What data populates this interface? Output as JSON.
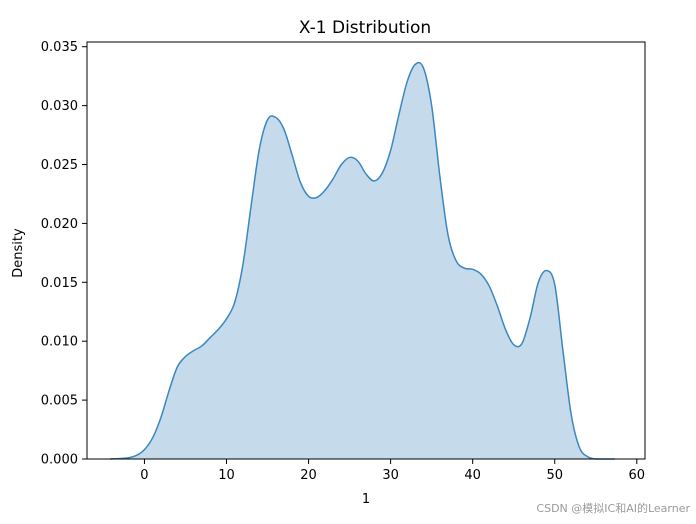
{
  "chart_data": {
    "type": "area",
    "title": "X-1 Distribution",
    "xlabel": "1",
    "ylabel": "Density",
    "xlim": [
      -7,
      61
    ],
    "ylim": [
      0,
      0.0354
    ],
    "xticks": [
      0,
      10,
      20,
      30,
      40,
      50,
      60
    ],
    "yticks": [
      0.0,
      0.005,
      0.01,
      0.015,
      0.02,
      0.025,
      0.03,
      0.035
    ],
    "ytick_labels": [
      "0.000",
      "0.005",
      "0.010",
      "0.015",
      "0.020",
      "0.025",
      "0.030",
      "0.035"
    ],
    "grid": false,
    "legend": false,
    "series": [
      {
        "color": "#3b87bf",
        "fill": "#c5dbec",
        "x": [
          -4.2,
          -2,
          -1,
          0,
          1,
          2,
          3,
          4,
          5,
          6,
          7,
          8,
          9,
          10,
          11,
          12,
          13,
          14,
          15,
          16,
          17,
          18,
          19,
          20,
          21,
          22,
          23,
          24,
          25,
          26,
          27,
          28,
          29,
          30,
          31,
          32,
          33,
          34,
          35,
          36,
          37,
          38,
          39,
          40,
          41,
          42,
          43,
          44,
          45,
          46,
          47,
          48,
          49,
          50,
          51,
          52,
          53,
          54,
          55,
          56,
          57.3
        ],
        "values": [
          0.0,
          0.0001,
          0.0003,
          0.0008,
          0.0018,
          0.0035,
          0.0058,
          0.0078,
          0.0087,
          0.0092,
          0.0096,
          0.0103,
          0.011,
          0.0119,
          0.0133,
          0.0165,
          0.0215,
          0.0263,
          0.0288,
          0.029,
          0.028,
          0.0258,
          0.0235,
          0.0223,
          0.0222,
          0.0228,
          0.0238,
          0.025,
          0.0256,
          0.0253,
          0.0242,
          0.0236,
          0.0243,
          0.0262,
          0.0292,
          0.032,
          0.0335,
          0.0332,
          0.03,
          0.024,
          0.019,
          0.0168,
          0.0162,
          0.0161,
          0.0157,
          0.0147,
          0.013,
          0.011,
          0.0097,
          0.0098,
          0.012,
          0.015,
          0.016,
          0.0148,
          0.0092,
          0.0038,
          0.001,
          0.0002,
          0.0,
          0.0,
          0.0
        ]
      }
    ]
  },
  "watermark": "CSDN @模拟IC和AI的Learner"
}
